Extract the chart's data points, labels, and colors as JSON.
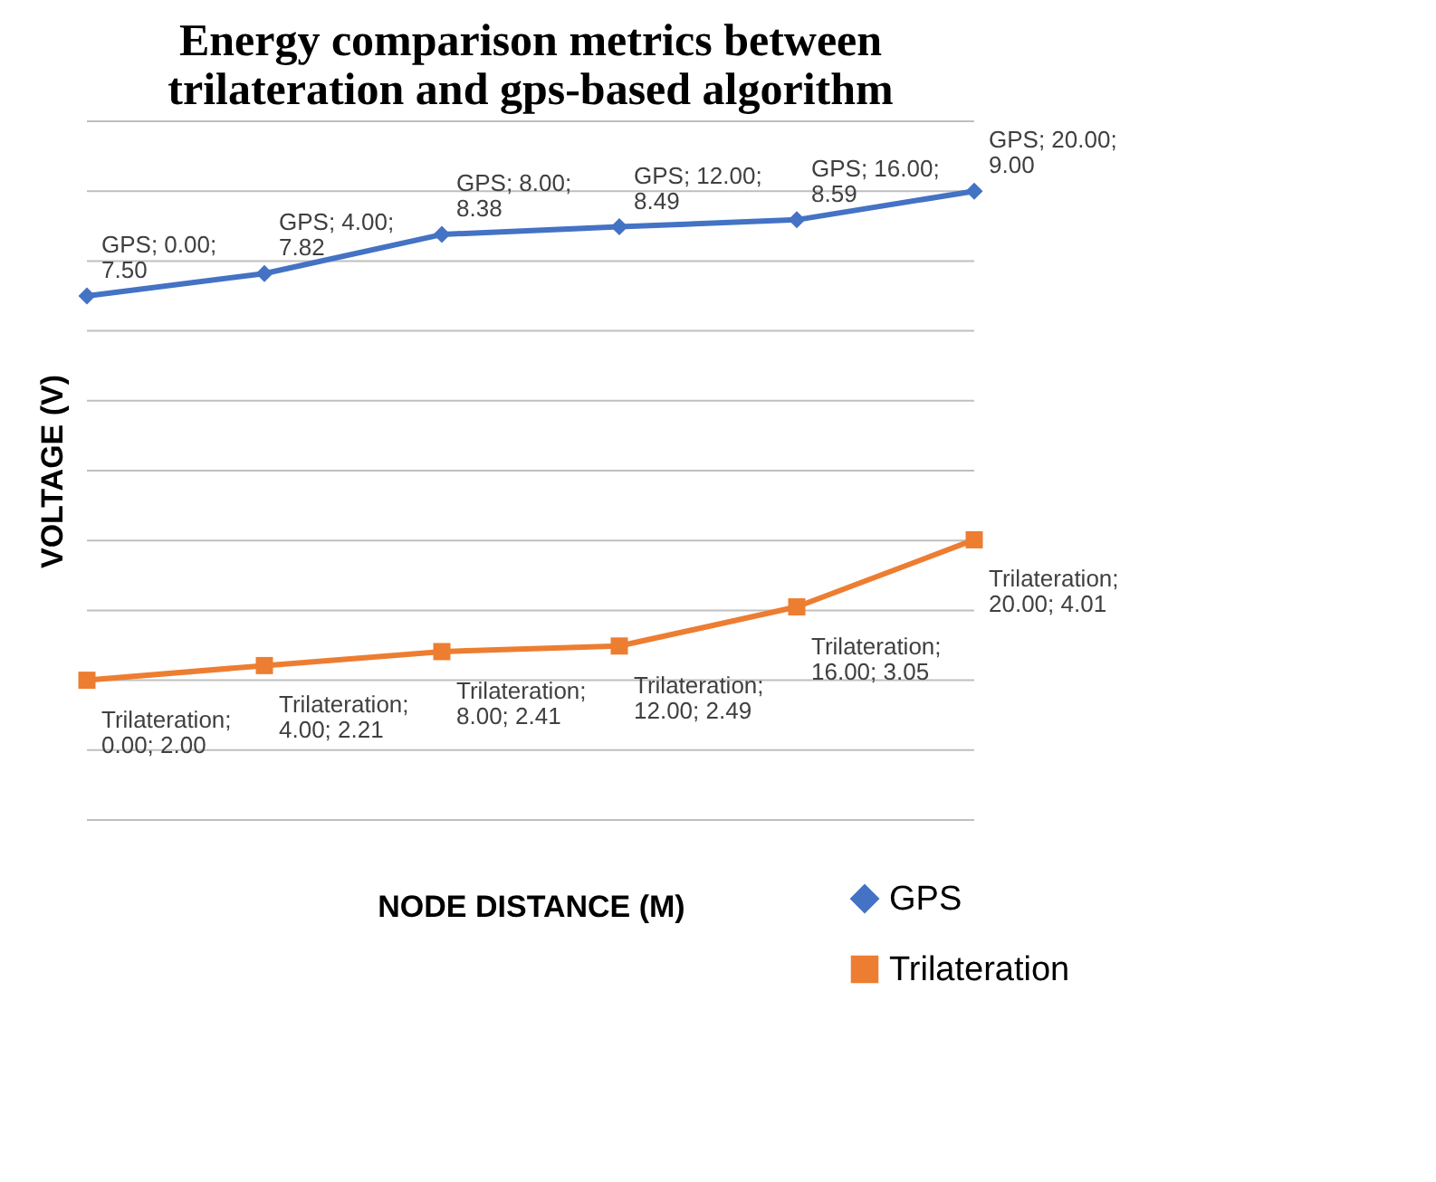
{
  "chart_data": {
    "type": "line",
    "title": [
      "Energy comparison metrics between",
      "trilateration and gps-based algorithm"
    ],
    "xlabel": "NODE DISTANCE (M)",
    "ylabel": "VOLTAGE (V)",
    "categories": [
      null,
      null,
      null,
      null,
      null,
      null
    ],
    "ylim": [
      0,
      10
    ],
    "yticks": [
      0,
      1,
      2,
      3,
      4,
      5,
      6,
      7,
      8,
      9,
      10
    ],
    "series": [
      {
        "name": "GPS",
        "color": "#4472c4",
        "marker": "diamond",
        "values": [
          7.5,
          7.82,
          8.38,
          8.49,
          8.59,
          9.0
        ],
        "value_labels": [
          "GPS; 0.00; 7.50",
          "GPS; 4.00; 7.82",
          "GPS; 8.00; 8.38",
          "GPS; 12.00; 8.49",
          "GPS; 16.00; 8.59",
          "GPS; 20.00; 9.00"
        ]
      },
      {
        "name": "Trilateration",
        "color": "#ed7d31",
        "marker": "square",
        "values": [
          2.0,
          2.21,
          2.41,
          2.49,
          3.05,
          4.01
        ],
        "value_labels": [
          "Trilateration; 0.00; 2.00",
          "Trilateration; 4.00; 2.21",
          "Trilateration; 8.00; 2.41",
          "Trilateration; 12.00; 2.49",
          "Trilateration; 16.00; 3.05",
          "Trilateration; 20.00; 4.01"
        ]
      }
    ],
    "grid": "y",
    "tick_labels": false,
    "legend": "bottom right",
    "line_style": "solid"
  }
}
